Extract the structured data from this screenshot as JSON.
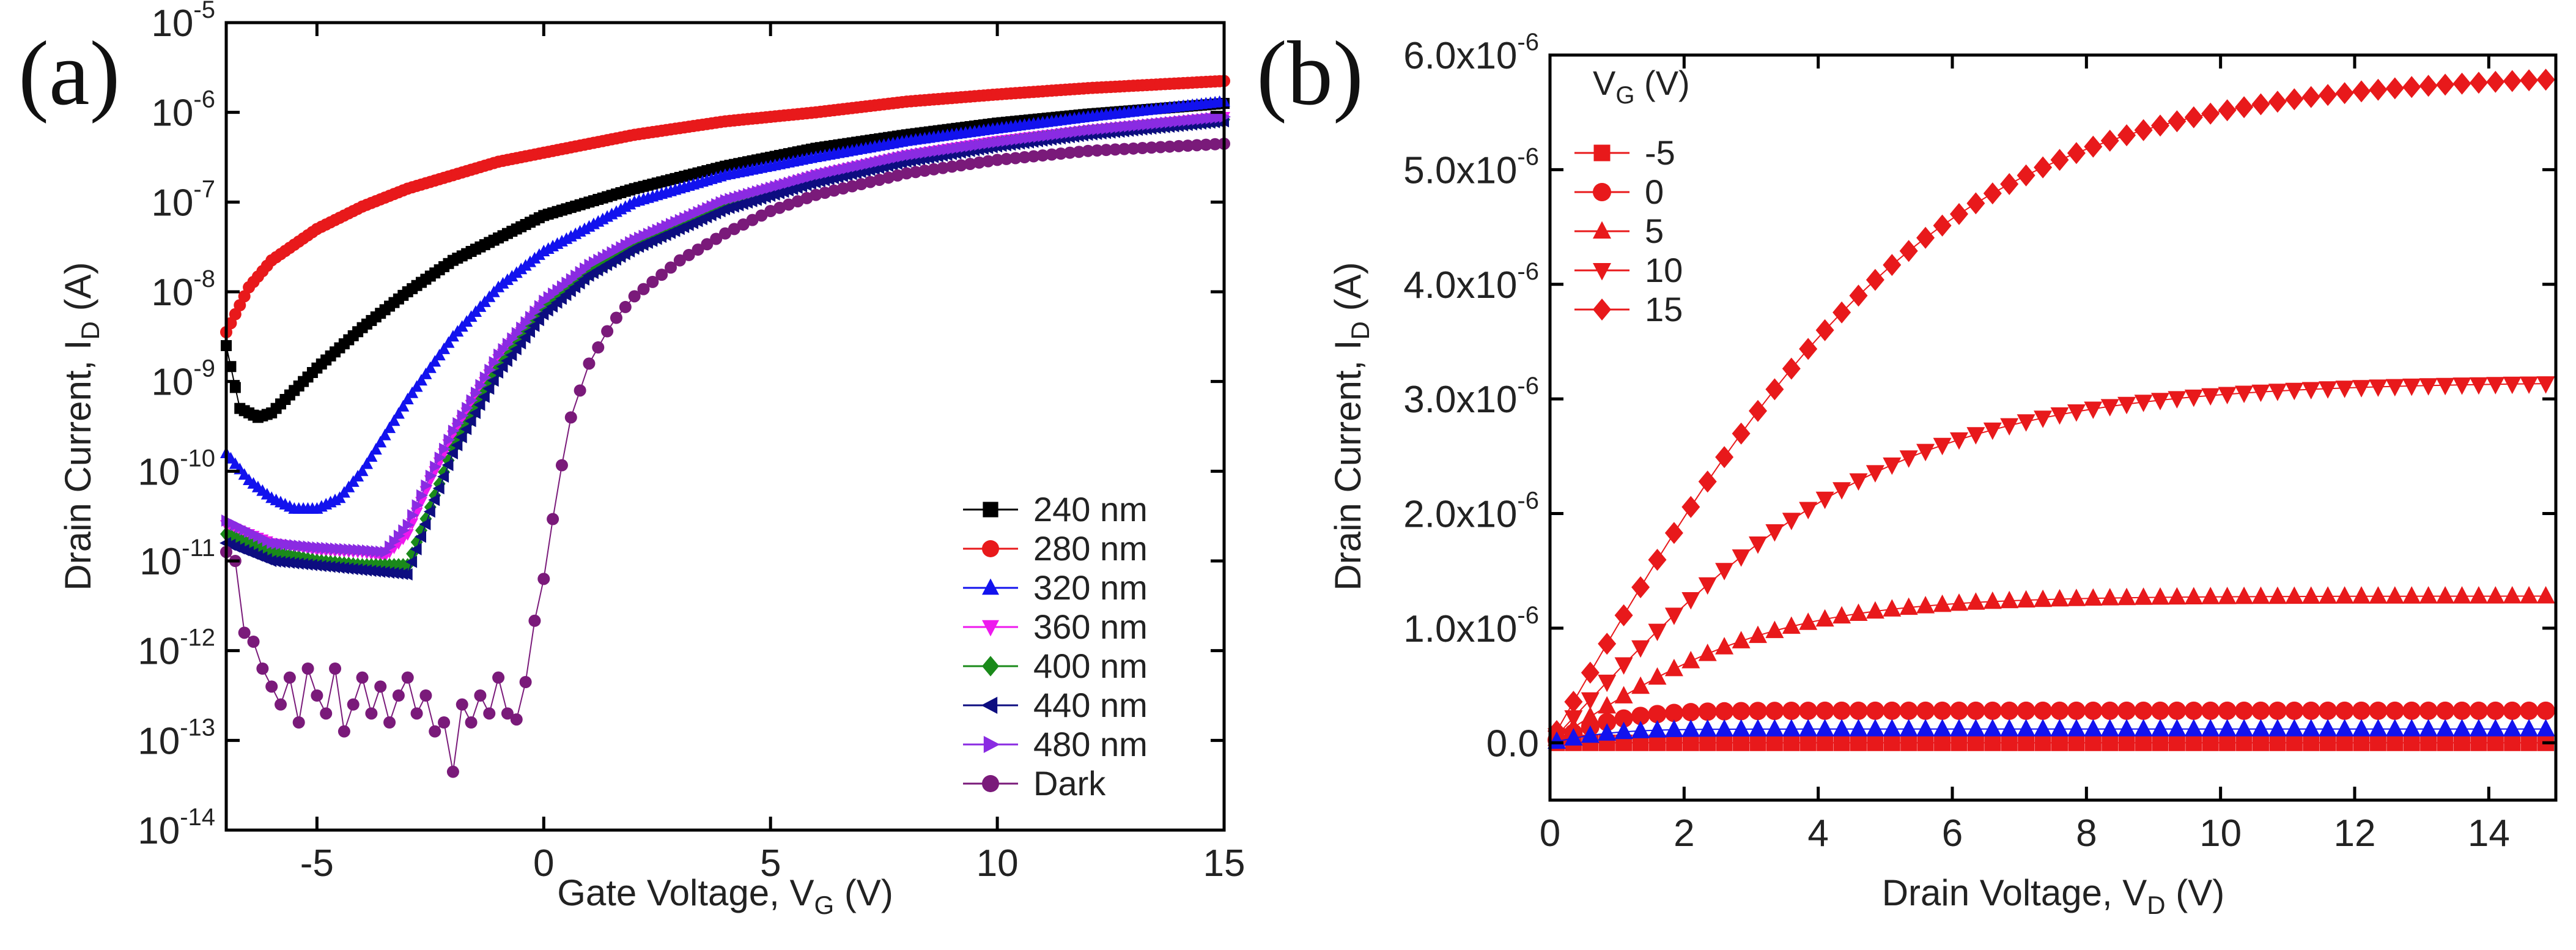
{
  "panels": {
    "a_label": "(a)",
    "b_label": "(b)"
  },
  "chart_data": [
    {
      "type": "scatter",
      "yscale": "log",
      "xlabel_main": "Gate Voltage, V",
      "xlabel_sub": "G",
      "xlabel_unit": " (V)",
      "ylabel_main": "Drain Current, I",
      "ylabel_sub": "D",
      "ylabel_unit": " (A)",
      "xlim": [
        -7,
        15
      ],
      "ylim_exp": [
        -14,
        -5
      ],
      "xticks": [
        {
          "v": -5,
          "label": "-5"
        },
        {
          "v": 0,
          "label": "0"
        },
        {
          "v": 5,
          "label": "5"
        },
        {
          "v": 10,
          "label": "10"
        },
        {
          "v": 15,
          "label": "15"
        }
      ],
      "yticks": [
        {
          "exp": -5,
          "base": "10",
          "sup": "-5"
        },
        {
          "exp": -6,
          "base": "10",
          "sup": "-6"
        },
        {
          "exp": -7,
          "base": "10",
          "sup": "-7"
        },
        {
          "exp": -8,
          "base": "10",
          "sup": "-8"
        },
        {
          "exp": -9,
          "base": "10",
          "sup": "-9"
        },
        {
          "exp": -10,
          "base": "10",
          "sup": "-10"
        },
        {
          "exp": -11,
          "base": "10",
          "sup": "-11"
        },
        {
          "exp": -12,
          "base": "10",
          "sup": "-12"
        },
        {
          "exp": -13,
          "base": "10",
          "sup": "-13"
        },
        {
          "exp": -14,
          "base": "10",
          "sup": "-14"
        }
      ],
      "legend": "lower-right",
      "series": [
        {
          "name": "240 nm",
          "color": "#000000",
          "marker": "square",
          "points": [
            [
              -7,
              -8.6
            ],
            [
              -6.7,
              -9.3
            ],
            [
              -6.3,
              -9.4
            ],
            [
              -6,
              -9.35
            ],
            [
              -5.5,
              -9.1
            ],
            [
              -5,
              -8.85
            ],
            [
              -4,
              -8.4
            ],
            [
              -3,
              -8.0
            ],
            [
              -2,
              -7.65
            ],
            [
              -1,
              -7.4
            ],
            [
              0,
              -7.15
            ],
            [
              2,
              -6.85
            ],
            [
              4,
              -6.6
            ],
            [
              6,
              -6.4
            ],
            [
              8,
              -6.25
            ],
            [
              10,
              -6.12
            ],
            [
              12,
              -6.02
            ],
            [
              15,
              -5.9
            ]
          ]
        },
        {
          "name": "280 nm",
          "color": "#e8191b",
          "marker": "circle",
          "points": [
            [
              -7,
              -8.45
            ],
            [
              -6.5,
              -7.95
            ],
            [
              -6,
              -7.65
            ],
            [
              -5,
              -7.3
            ],
            [
              -4,
              -7.05
            ],
            [
              -3,
              -6.85
            ],
            [
              -2,
              -6.7
            ],
            [
              -1,
              -6.55
            ],
            [
              0,
              -6.45
            ],
            [
              2,
              -6.25
            ],
            [
              4,
              -6.1
            ],
            [
              6,
              -6.0
            ],
            [
              8,
              -5.88
            ],
            [
              10,
              -5.8
            ],
            [
              12,
              -5.73
            ],
            [
              15,
              -5.65
            ]
          ]
        },
        {
          "name": "320 nm",
          "color": "#1212ee",
          "marker": "triangle",
          "points": [
            [
              -7,
              -9.8
            ],
            [
              -6.5,
              -10.1
            ],
            [
              -6,
              -10.3
            ],
            [
              -5.5,
              -10.42
            ],
            [
              -5,
              -10.42
            ],
            [
              -4.5,
              -10.3
            ],
            [
              -4,
              -10.0
            ],
            [
              -3.5,
              -9.6
            ],
            [
              -3,
              -9.2
            ],
            [
              -2,
              -8.5
            ],
            [
              -1,
              -7.95
            ],
            [
              0,
              -7.55
            ],
            [
              2,
              -7.0
            ],
            [
              4,
              -6.7
            ],
            [
              6,
              -6.5
            ],
            [
              8,
              -6.32
            ],
            [
              10,
              -6.18
            ],
            [
              12,
              -6.05
            ],
            [
              15,
              -5.88
            ]
          ]
        },
        {
          "name": "360 nm",
          "color": "#ee18ee",
          "marker": "triangle-down",
          "points": [
            [
              -7,
              -10.6
            ],
            [
              -6,
              -10.8
            ],
            [
              -5,
              -10.88
            ],
            [
              -4,
              -10.9
            ],
            [
              -3.5,
              -10.95
            ],
            [
              -3,
              -10.7
            ],
            [
              -2.5,
              -10.1
            ],
            [
              -2,
              -9.6
            ],
            [
              -1,
              -8.75
            ],
            [
              0,
              -8.15
            ],
            [
              1,
              -7.75
            ],
            [
              2,
              -7.45
            ],
            [
              4,
              -7.0
            ],
            [
              6,
              -6.7
            ],
            [
              8,
              -6.48
            ],
            [
              10,
              -6.32
            ],
            [
              12,
              -6.2
            ],
            [
              15,
              -6.05
            ]
          ]
        },
        {
          "name": "400 nm",
          "color": "#1a8a1a",
          "marker": "diamond",
          "points": [
            [
              -7,
              -10.7
            ],
            [
              -6,
              -10.9
            ],
            [
              -5,
              -11.0
            ],
            [
              -4,
              -11.05
            ],
            [
              -3,
              -11.05
            ],
            [
              -2.5,
              -10.4
            ],
            [
              -2,
              -9.75
            ],
            [
              -1,
              -8.85
            ],
            [
              0,
              -8.2
            ],
            [
              1,
              -7.8
            ],
            [
              2,
              -7.5
            ],
            [
              4,
              -7.05
            ],
            [
              6,
              -6.75
            ],
            [
              8,
              -6.52
            ],
            [
              10,
              -6.35
            ],
            [
              12,
              -6.22
            ],
            [
              15,
              -6.08
            ]
          ]
        },
        {
          "name": "440 nm",
          "color": "#0d0d80",
          "marker": "triangle-left",
          "points": [
            [
              -7,
              -10.8
            ],
            [
              -6,
              -11.0
            ],
            [
              -5,
              -11.05
            ],
            [
              -4,
              -11.1
            ],
            [
              -3,
              -11.15
            ],
            [
              -2.5,
              -10.45
            ],
            [
              -2,
              -9.8
            ],
            [
              -1,
              -8.9
            ],
            [
              0,
              -8.25
            ],
            [
              1,
              -7.82
            ],
            [
              2,
              -7.52
            ],
            [
              4,
              -7.08
            ],
            [
              6,
              -6.78
            ],
            [
              8,
              -6.55
            ],
            [
              10,
              -6.38
            ],
            [
              12,
              -6.25
            ],
            [
              15,
              -6.1
            ]
          ]
        },
        {
          "name": "480 nm",
          "color": "#8a2be2",
          "marker": "triangle-right",
          "points": [
            [
              -7,
              -10.55
            ],
            [
              -6,
              -10.8
            ],
            [
              -5,
              -10.85
            ],
            [
              -4,
              -10.88
            ],
            [
              -3.5,
              -10.9
            ],
            [
              -3,
              -10.6
            ],
            [
              -2.5,
              -10.05
            ],
            [
              -2,
              -9.55
            ],
            [
              -1,
              -8.7
            ],
            [
              0,
              -8.1
            ],
            [
              1,
              -7.7
            ],
            [
              2,
              -7.42
            ],
            [
              4,
              -6.98
            ],
            [
              6,
              -6.7
            ],
            [
              8,
              -6.48
            ],
            [
              10,
              -6.33
            ],
            [
              12,
              -6.2
            ],
            [
              15,
              -6.05
            ]
          ]
        },
        {
          "name": "Dark",
          "color": "#7a1a7a",
          "marker": "circle",
          "points": [
            [
              -7,
              -10.9
            ],
            [
              -6.8,
              -11.0
            ],
            [
              -6.6,
              -11.8
            ],
            [
              -6.4,
              -11.9
            ],
            [
              -6.2,
              -12.2
            ],
            [
              -6.0,
              -12.4
            ],
            [
              -5.8,
              -12.6
            ],
            [
              -5.6,
              -12.3
            ],
            [
              -5.4,
              -12.8
            ],
            [
              -5.2,
              -12.2
            ],
            [
              -5.0,
              -12.5
            ],
            [
              -4.8,
              -12.7
            ],
            [
              -4.6,
              -12.2
            ],
            [
              -4.4,
              -12.9
            ],
            [
              -4.2,
              -12.6
            ],
            [
              -4.0,
              -12.3
            ],
            [
              -3.8,
              -12.7
            ],
            [
              -3.6,
              -12.4
            ],
            [
              -3.4,
              -12.8
            ],
            [
              -3.2,
              -12.5
            ],
            [
              -3.0,
              -12.3
            ],
            [
              -2.8,
              -12.7
            ],
            [
              -2.6,
              -12.5
            ],
            [
              -2.4,
              -12.9
            ],
            [
              -2.2,
              -12.8
            ],
            [
              -2.0,
              -13.35
            ],
            [
              -1.8,
              -12.6
            ],
            [
              -1.6,
              -12.8
            ],
            [
              -1.4,
              -12.5
            ],
            [
              -1.2,
              -12.7
            ],
            [
              -1.0,
              -12.3
            ],
            [
              -0.8,
              -12.7
            ],
            [
              -0.5,
              -12.8
            ],
            [
              -0.3,
              -11.9
            ],
            [
              0,
              -11.2
            ],
            [
              0.3,
              -10.2
            ],
            [
              0.6,
              -9.4
            ],
            [
              1,
              -8.8
            ],
            [
              1.5,
              -8.35
            ],
            [
              2,
              -8.05
            ],
            [
              3,
              -7.65
            ],
            [
              4,
              -7.35
            ],
            [
              5,
              -7.1
            ],
            [
              6,
              -6.92
            ],
            [
              8,
              -6.68
            ],
            [
              10,
              -6.53
            ],
            [
              12,
              -6.43
            ],
            [
              15,
              -6.35
            ]
          ]
        }
      ]
    },
    {
      "type": "scatter",
      "xlabel_main": "Drain Voltage, V",
      "xlabel_sub": "D",
      "xlabel_unit": " (V)",
      "ylabel_main": "Drain Current, I",
      "ylabel_sub": "D",
      "ylabel_unit": " (A)",
      "xlim": [
        0,
        15
      ],
      "ylim": [
        -0.5,
        6.0
      ],
      "y_unit": "x10^-6 A",
      "xticks": [
        {
          "v": 0,
          "label": "0"
        },
        {
          "v": 2,
          "label": "2"
        },
        {
          "v": 4,
          "label": "4"
        },
        {
          "v": 6,
          "label": "6"
        },
        {
          "v": 8,
          "label": "8"
        },
        {
          "v": 10,
          "label": "10"
        },
        {
          "v": 12,
          "label": "12"
        },
        {
          "v": 14,
          "label": "14"
        }
      ],
      "yticks": [
        {
          "v": 0,
          "base": "0.0",
          "sup": ""
        },
        {
          "v": 1,
          "base": "1.0x10",
          "sup": "-6"
        },
        {
          "v": 2,
          "base": "2.0x10",
          "sup": "-6"
        },
        {
          "v": 3,
          "base": "3.0x10",
          "sup": "-6"
        },
        {
          "v": 4,
          "base": "4.0x10",
          "sup": "-6"
        },
        {
          "v": 5,
          "base": "5.0x10",
          "sup": "-6"
        },
        {
          "v": 6,
          "base": "6.0x10",
          "sup": "-6"
        }
      ],
      "legend": "top-left",
      "legend_title_main": "V",
      "legend_title_sub": "G",
      "legend_title_unit": " (V)",
      "series": [
        {
          "name": "-5",
          "color": "#e8191b",
          "marker": "square",
          "isat": 0.0,
          "k": 1.0
        },
        {
          "name": "0",
          "color": "#e8191b",
          "marker": "circle",
          "isat": 0.28,
          "k": 0.9
        },
        {
          "name": "5",
          "color": "#e8191b",
          "marker": "triangle",
          "isat": 1.28,
          "k": 0.3
        },
        {
          "name": "10",
          "color": "#e8191b",
          "marker": "triangle-down",
          "isat": 3.15,
          "k": 0.2
        },
        {
          "name": "15",
          "color": "#e8191b",
          "marker": "diamond",
          "isat": 5.85,
          "k": 0.175
        }
      ],
      "extra_series": [
        {
          "name": "blue",
          "color": "#1212ee",
          "marker": "triangle",
          "isat": 0.12,
          "k": 1.0
        }
      ]
    }
  ]
}
